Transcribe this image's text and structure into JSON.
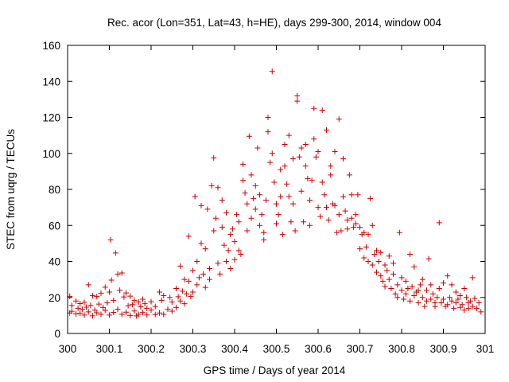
{
  "chart_data": {
    "type": "scatter",
    "title": "Rec. acor (Lon=351, Lat=43, h=HE), days 299-300, 2014, window 004",
    "xlabel": "GPS time / Days of year 2014",
    "ylabel": "STEC from uqrg / TECUs",
    "xlim": [
      300,
      301
    ],
    "ylim": [
      0,
      160
    ],
    "xticks": [
      300,
      300.1,
      300.2,
      300.3,
      300.4,
      300.5,
      300.6,
      300.7,
      300.8,
      300.9,
      301
    ],
    "xtick_labels": [
      "300",
      "300.1",
      "300.2",
      "300.3",
      "300.4",
      "300.5",
      "300.6",
      "300.7",
      "300.8",
      "300.9",
      "301"
    ],
    "yticks": [
      0,
      20,
      40,
      60,
      80,
      100,
      120,
      140,
      160
    ],
    "ytick_labels": [
      "0",
      "20",
      "40",
      "60",
      "80",
      "100",
      "120",
      "140",
      "160"
    ],
    "marker": "plus",
    "color": "#cc0000",
    "grid": false,
    "series": [
      {
        "name": "STEC",
        "points": [
          [
            300.005,
            20.6
          ],
          [
            300.005,
            11.4
          ],
          [
            300.01,
            15.5
          ],
          [
            300.01,
            12.3
          ],
          [
            300.02,
            18.0
          ],
          [
            300.02,
            10.9
          ],
          [
            300.025,
            14.0
          ],
          [
            300.03,
            16.6
          ],
          [
            300.03,
            11.2
          ],
          [
            300.035,
            13.4
          ],
          [
            300.04,
            17.3
          ],
          [
            300.04,
            10.2
          ],
          [
            300.045,
            14.6
          ],
          [
            300.05,
            27.0
          ],
          [
            300.05,
            12.0
          ],
          [
            300.055,
            15.6
          ],
          [
            300.06,
            21.0
          ],
          [
            300.06,
            9.8
          ],
          [
            300.065,
            13.0
          ],
          [
            300.07,
            20.5
          ],
          [
            300.07,
            11.5
          ],
          [
            300.075,
            16.3
          ],
          [
            300.08,
            22.4
          ],
          [
            300.08,
            10.6
          ],
          [
            300.085,
            14.4
          ],
          [
            300.09,
            25.7
          ],
          [
            300.09,
            12.8
          ],
          [
            300.095,
            17.0
          ],
          [
            300.1,
            23.0
          ],
          [
            300.1,
            10.2
          ],
          [
            300.103,
            52.0
          ],
          [
            300.105,
            29.6
          ],
          [
            300.11,
            18.4
          ],
          [
            300.11,
            11.7
          ],
          [
            300.115,
            44.7
          ],
          [
            300.12,
            33.0
          ],
          [
            300.12,
            13.5
          ],
          [
            300.125,
            24.0
          ],
          [
            300.13,
            33.6
          ],
          [
            300.13,
            10.6
          ],
          [
            300.135,
            20.3
          ],
          [
            300.14,
            22.5
          ],
          [
            300.14,
            11.8
          ],
          [
            300.145,
            15.4
          ],
          [
            300.15,
            20.7
          ],
          [
            300.15,
            10.0
          ],
          [
            300.155,
            16.0
          ],
          [
            300.16,
            18.4
          ],
          [
            300.16,
            12.5
          ],
          [
            300.165,
            9.8
          ],
          [
            300.17,
            17.5
          ],
          [
            300.17,
            10.6
          ],
          [
            300.175,
            14.8
          ],
          [
            300.18,
            19.0
          ],
          [
            300.18,
            11.6
          ],
          [
            300.185,
            16.5
          ],
          [
            300.19,
            14.0
          ],
          [
            300.19,
            10.3
          ],
          [
            300.2,
            13.0
          ],
          [
            300.2,
            17.6
          ],
          [
            300.21,
            10.5
          ],
          [
            300.21,
            15.0
          ],
          [
            300.22,
            23.0
          ],
          [
            300.22,
            11.4
          ],
          [
            300.225,
            18.4
          ],
          [
            300.23,
            21.0
          ],
          [
            300.23,
            10.6
          ],
          [
            300.24,
            13.5
          ],
          [
            300.245,
            20.0
          ],
          [
            300.25,
            17.5
          ],
          [
            300.25,
            12.4
          ],
          [
            300.26,
            25.0
          ],
          [
            300.26,
            14.4
          ],
          [
            300.265,
            20.4
          ],
          [
            300.27,
            37.4
          ],
          [
            300.27,
            18.0
          ],
          [
            300.275,
            23.5
          ],
          [
            300.28,
            30.0
          ],
          [
            300.28,
            16.5
          ],
          [
            300.285,
            22.0
          ],
          [
            300.29,
            54.0
          ],
          [
            300.29,
            29.0
          ],
          [
            300.295,
            20.5
          ],
          [
            300.3,
            35.0
          ],
          [
            300.3,
            23.0
          ],
          [
            300.305,
            76.0
          ],
          [
            300.31,
            40.0
          ],
          [
            300.31,
            27.0
          ],
          [
            300.315,
            31.0
          ],
          [
            300.32,
            50.0
          ],
          [
            300.32,
            71.0
          ],
          [
            300.325,
            33.0
          ],
          [
            300.33,
            47.0
          ],
          [
            300.33,
            25.6
          ],
          [
            300.335,
            69.0
          ],
          [
            300.34,
            36.0
          ],
          [
            300.34,
            30.0
          ],
          [
            300.345,
            82.0
          ],
          [
            300.35,
            97.5
          ],
          [
            300.35,
            57.0
          ],
          [
            300.355,
            64.0
          ],
          [
            300.36,
            81.0
          ],
          [
            300.36,
            39.0
          ],
          [
            300.365,
            33.0
          ],
          [
            300.37,
            74.0
          ],
          [
            300.37,
            59.0
          ],
          [
            300.375,
            49.0
          ],
          [
            300.38,
            67.0
          ],
          [
            300.38,
            40.0
          ],
          [
            300.385,
            46.0
          ],
          [
            300.39,
            55.0
          ],
          [
            300.39,
            36.0
          ],
          [
            300.395,
            58.0
          ],
          [
            300.4,
            51.0
          ],
          [
            300.4,
            41.0
          ],
          [
            300.405,
            66.0
          ],
          [
            300.41,
            62.0
          ],
          [
            300.41,
            46.0
          ],
          [
            300.415,
            44.0
          ],
          [
            300.42,
            94.0
          ],
          [
            300.42,
            85.0
          ],
          [
            300.425,
            78.0
          ],
          [
            300.43,
            72.0
          ],
          [
            300.43,
            57.0
          ],
          [
            300.435,
            109.5
          ],
          [
            300.44,
            88.0
          ],
          [
            300.44,
            64.0
          ],
          [
            300.445,
            75.0
          ],
          [
            300.45,
            82.0
          ],
          [
            300.45,
            69.0
          ],
          [
            300.455,
            103.0
          ],
          [
            300.46,
            77.0
          ],
          [
            300.46,
            60.0
          ],
          [
            300.465,
            66.0
          ],
          [
            300.47,
            56.0
          ],
          [
            300.47,
            52.0
          ],
          [
            300.475,
            74.0
          ],
          [
            300.48,
            112.0
          ],
          [
            300.48,
            120.0
          ],
          [
            300.485,
            95.0
          ],
          [
            300.49,
            145.5
          ],
          [
            300.49,
            100.0
          ],
          [
            300.495,
            84.0
          ],
          [
            300.5,
            72.0
          ],
          [
            300.5,
            61.0
          ],
          [
            300.505,
            66.0
          ],
          [
            300.51,
            91.0
          ],
          [
            300.51,
            76.0
          ],
          [
            300.515,
            55.0
          ],
          [
            300.52,
            105.0
          ],
          [
            300.52,
            93.0
          ],
          [
            300.525,
            83.0
          ],
          [
            300.53,
            110.0
          ],
          [
            300.53,
            76.0
          ],
          [
            300.535,
            62.0
          ],
          [
            300.54,
            97.0
          ],
          [
            300.54,
            72.0
          ],
          [
            300.545,
            57.0
          ],
          [
            300.55,
            132.0
          ],
          [
            300.55,
            129.0
          ],
          [
            300.555,
            98.0
          ],
          [
            300.56,
            103.0
          ],
          [
            300.56,
            79.0
          ],
          [
            300.565,
            62.0
          ],
          [
            300.57,
            105.0
          ],
          [
            300.57,
            93.0
          ],
          [
            300.575,
            86.0
          ],
          [
            300.58,
            74.0
          ],
          [
            300.58,
            60.0
          ],
          [
            300.585,
            85.0
          ],
          [
            300.59,
            125.0
          ],
          [
            300.59,
            108.0
          ],
          [
            300.595,
            98.0
          ],
          [
            300.6,
            101.0
          ],
          [
            300.6,
            70.0
          ],
          [
            300.605,
            65.0
          ],
          [
            300.61,
            124.0
          ],
          [
            300.61,
            84.0
          ],
          [
            300.615,
            77.0
          ],
          [
            300.62,
            113.0
          ],
          [
            300.62,
            70.0
          ],
          [
            300.625,
            63.0
          ],
          [
            300.63,
            93.0
          ],
          [
            300.63,
            88.0
          ],
          [
            300.635,
            72.0
          ],
          [
            300.64,
            101.0
          ],
          [
            300.64,
            71.0
          ],
          [
            300.645,
            56.0
          ],
          [
            300.65,
            119.0
          ],
          [
            300.65,
            66.0
          ],
          [
            300.655,
            57.0
          ],
          [
            300.66,
            97.0
          ],
          [
            300.66,
            76.0
          ],
          [
            300.665,
            68.0
          ],
          [
            300.67,
            63.0
          ],
          [
            300.67,
            58.0
          ],
          [
            300.675,
            88.0
          ],
          [
            300.68,
            77.0
          ],
          [
            300.68,
            64.0
          ],
          [
            300.685,
            59.0
          ],
          [
            300.69,
            66.0
          ],
          [
            300.69,
            61.0
          ],
          [
            300.695,
            77.0
          ],
          [
            300.7,
            59.0
          ],
          [
            300.7,
            47.0
          ],
          [
            300.705,
            55.0
          ],
          [
            300.71,
            56.0
          ],
          [
            300.71,
            42.0
          ],
          [
            300.715,
            48.0
          ],
          [
            300.72,
            55.0
          ],
          [
            300.72,
            40.0
          ],
          [
            300.725,
            75.0
          ],
          [
            300.73,
            60.0
          ],
          [
            300.73,
            38.0
          ],
          [
            300.735,
            44.0
          ],
          [
            300.74,
            46.0
          ],
          [
            300.74,
            34.0
          ],
          [
            300.745,
            40.0
          ],
          [
            300.75,
            45.0
          ],
          [
            300.75,
            32.0
          ],
          [
            300.755,
            29.0
          ],
          [
            300.76,
            38.0
          ],
          [
            300.76,
            26.0
          ],
          [
            300.765,
            35.0
          ],
          [
            300.77,
            43.0
          ],
          [
            300.77,
            30.0
          ],
          [
            300.775,
            25.0
          ],
          [
            300.78,
            39.0
          ],
          [
            300.78,
            33.0
          ],
          [
            300.785,
            22.0
          ],
          [
            300.79,
            27.0
          ],
          [
            300.79,
            20.0
          ],
          [
            300.795,
            56.0
          ],
          [
            300.8,
            31.0
          ],
          [
            300.8,
            24.0
          ],
          [
            300.805,
            19.0
          ],
          [
            300.81,
            29.0
          ],
          [
            300.81,
            22.0
          ],
          [
            300.815,
            25.0
          ],
          [
            300.82,
            44.0
          ],
          [
            300.82,
            18.0
          ],
          [
            300.825,
            26.0
          ],
          [
            300.83,
            37.0
          ],
          [
            300.83,
            21.0
          ],
          [
            300.835,
            23.0
          ],
          [
            300.84,
            24.0
          ],
          [
            300.84,
            17.0
          ],
          [
            300.845,
            27.0
          ],
          [
            300.85,
            30.0
          ],
          [
            300.85,
            20.0
          ],
          [
            300.855,
            15.0
          ],
          [
            300.86,
            24.0
          ],
          [
            300.86,
            18.0
          ],
          [
            300.865,
            41.5
          ],
          [
            300.87,
            27.0
          ],
          [
            300.87,
            19.0
          ],
          [
            300.875,
            22.0
          ],
          [
            300.88,
            17.0
          ],
          [
            300.88,
            15.0
          ],
          [
            300.885,
            20.0
          ],
          [
            300.89,
            61.5
          ],
          [
            300.89,
            25.0
          ],
          [
            300.895,
            17.0
          ],
          [
            300.9,
            28.0
          ],
          [
            300.9,
            19.0
          ],
          [
            300.905,
            15.0
          ],
          [
            300.91,
            32.0
          ],
          [
            300.91,
            16.0
          ],
          [
            300.915,
            20.0
          ],
          [
            300.92,
            27.0
          ],
          [
            300.92,
            18.0
          ],
          [
            300.925,
            14.0
          ],
          [
            300.93,
            23.0
          ],
          [
            300.93,
            17.0
          ],
          [
            300.935,
            19.0
          ],
          [
            300.94,
            21.0
          ],
          [
            300.94,
            14.5
          ],
          [
            300.945,
            16.0
          ],
          [
            300.95,
            25.0
          ],
          [
            300.95,
            13.0
          ],
          [
            300.955,
            20.0
          ],
          [
            300.96,
            17.0
          ],
          [
            300.96,
            14.0
          ],
          [
            300.965,
            18.0
          ],
          [
            300.97,
            31.0
          ],
          [
            300.97,
            15.0
          ],
          [
            300.975,
            19.5
          ],
          [
            300.98,
            14.0
          ],
          [
            300.985,
            17.0
          ],
          [
            300.99,
            12.0
          ]
        ]
      }
    ]
  }
}
